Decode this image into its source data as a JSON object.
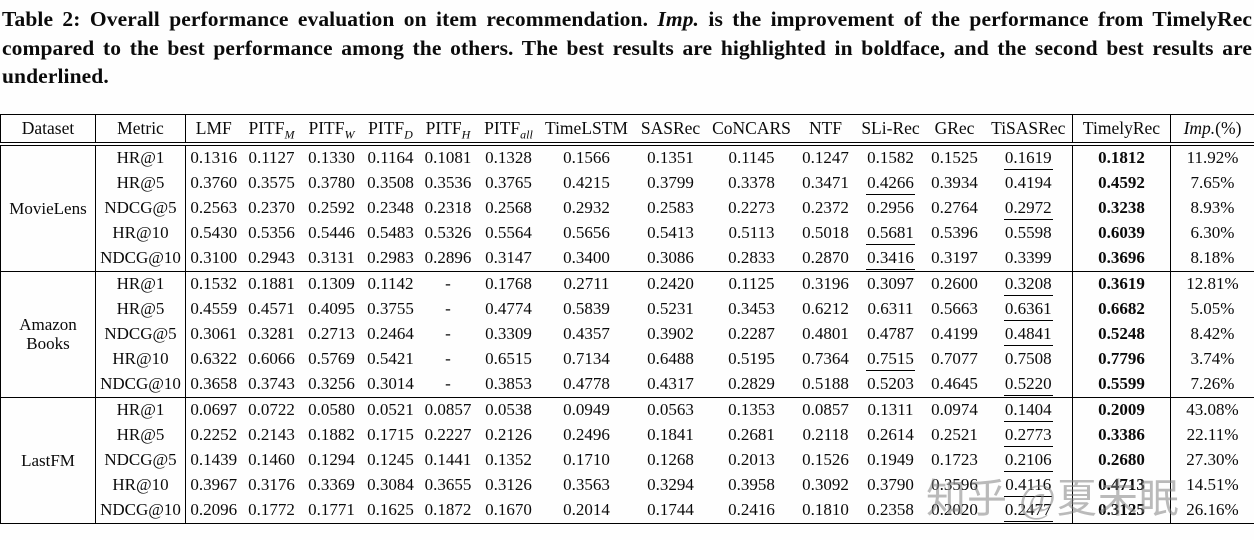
{
  "caption": {
    "part1": "Table 2: Overall performance evaluation on item recommendation. ",
    "term": "Imp.",
    "part2": " is the improvement of the performance from TimelyRec compared to the best performance among the others. The best results are highlighted in boldface, and the second best results are underlined."
  },
  "watermark": "知乎 @夏未眠",
  "table": {
    "columns": [
      {
        "label": "Dataset"
      },
      {
        "label": "Metric"
      },
      {
        "label": "LMF"
      },
      {
        "label": "PITF",
        "sub": "M"
      },
      {
        "label": "PITF",
        "sub": "W"
      },
      {
        "label": "PITF",
        "sub": "D"
      },
      {
        "label": "PITF",
        "sub": "H"
      },
      {
        "label": "PITF",
        "sub": "all"
      },
      {
        "label": "TimeLSTM"
      },
      {
        "label": "SASRec"
      },
      {
        "label": "CoNCARS"
      },
      {
        "label": "NTF"
      },
      {
        "label": "SLi-Rec"
      },
      {
        "label": "GRec"
      },
      {
        "label": "TiSASRec"
      },
      {
        "label": "TimelyRec"
      },
      {
        "label": "Imp.",
        "suffix": "(%)",
        "italic": true
      }
    ],
    "groups": [
      {
        "dataset": "MovieLens",
        "rows": [
          {
            "metric": "HR@1",
            "values": [
              "0.1316",
              "0.1127",
              "0.1330",
              "0.1164",
              "0.1081",
              "0.1328",
              "0.1566",
              "0.1351",
              "0.1145",
              "0.1247",
              "0.1582",
              "0.1525",
              "0.1619"
            ],
            "ul": 12,
            "timelyrec": "0.1812",
            "imp": "11.92%"
          },
          {
            "metric": "HR@5",
            "values": [
              "0.3760",
              "0.3575",
              "0.3780",
              "0.3508",
              "0.3536",
              "0.3765",
              "0.4215",
              "0.3799",
              "0.3378",
              "0.3471",
              "0.4266",
              "0.3934",
              "0.4194"
            ],
            "ul": 10,
            "timelyrec": "0.4592",
            "imp": "7.65%"
          },
          {
            "metric": "NDCG@5",
            "values": [
              "0.2563",
              "0.2370",
              "0.2592",
              "0.2348",
              "0.2318",
              "0.2568",
              "0.2932",
              "0.2583",
              "0.2273",
              "0.2372",
              "0.2956",
              "0.2764",
              "0.2972"
            ],
            "ul": 12,
            "timelyrec": "0.3238",
            "imp": "8.93%"
          },
          {
            "metric": "HR@10",
            "values": [
              "0.5430",
              "0.5356",
              "0.5446",
              "0.5483",
              "0.5326",
              "0.5564",
              "0.5656",
              "0.5413",
              "0.5113",
              "0.5018",
              "0.5681",
              "0.5396",
              "0.5598"
            ],
            "ul": 10,
            "timelyrec": "0.6039",
            "imp": "6.30%"
          },
          {
            "metric": "NDCG@10",
            "values": [
              "0.3100",
              "0.2943",
              "0.3131",
              "0.2983",
              "0.2896",
              "0.3147",
              "0.3400",
              "0.3086",
              "0.2833",
              "0.2870",
              "0.3416",
              "0.3197",
              "0.3399"
            ],
            "ul": 10,
            "timelyrec": "0.3696",
            "imp": "8.18%"
          }
        ]
      },
      {
        "dataset": "Amazon Books",
        "rows": [
          {
            "metric": "HR@1",
            "values": [
              "0.1532",
              "0.1881",
              "0.1309",
              "0.1142",
              "-",
              "0.1768",
              "0.2711",
              "0.2420",
              "0.1125",
              "0.3196",
              "0.3097",
              "0.2600",
              "0.3208"
            ],
            "ul": 12,
            "timelyrec": "0.3619",
            "imp": "12.81%"
          },
          {
            "metric": "HR@5",
            "values": [
              "0.4559",
              "0.4571",
              "0.4095",
              "0.3755",
              "-",
              "0.4774",
              "0.5839",
              "0.5231",
              "0.3453",
              "0.6212",
              "0.6311",
              "0.5663",
              "0.6361"
            ],
            "ul": 12,
            "timelyrec": "0.6682",
            "imp": "5.05%"
          },
          {
            "metric": "NDCG@5",
            "values": [
              "0.3061",
              "0.3281",
              "0.2713",
              "0.2464",
              "-",
              "0.3309",
              "0.4357",
              "0.3902",
              "0.2287",
              "0.4801",
              "0.4787",
              "0.4199",
              "0.4841"
            ],
            "ul": 12,
            "timelyrec": "0.5248",
            "imp": "8.42%"
          },
          {
            "metric": "HR@10",
            "values": [
              "0.6322",
              "0.6066",
              "0.5769",
              "0.5421",
              "-",
              "0.6515",
              "0.7134",
              "0.6488",
              "0.5195",
              "0.7364",
              "0.7515",
              "0.7077",
              "0.7508"
            ],
            "ul": 10,
            "timelyrec": "0.7796",
            "imp": "3.74%"
          },
          {
            "metric": "NDCG@10",
            "values": [
              "0.3658",
              "0.3743",
              "0.3256",
              "0.3014",
              "-",
              "0.3853",
              "0.4778",
              "0.4317",
              "0.2829",
              "0.5188",
              "0.5203",
              "0.4645",
              "0.5220"
            ],
            "ul": 12,
            "timelyrec": "0.5599",
            "imp": "7.26%"
          }
        ]
      },
      {
        "dataset": "LastFM",
        "rows": [
          {
            "metric": "HR@1",
            "values": [
              "0.0697",
              "0.0722",
              "0.0580",
              "0.0521",
              "0.0857",
              "0.0538",
              "0.0949",
              "0.0563",
              "0.1353",
              "0.0857",
              "0.1311",
              "0.0974",
              "0.1404"
            ],
            "ul": 12,
            "timelyrec": "0.2009",
            "imp": "43.08%"
          },
          {
            "metric": "HR@5",
            "values": [
              "0.2252",
              "0.2143",
              "0.1882",
              "0.1715",
              "0.2227",
              "0.2126",
              "0.2496",
              "0.1841",
              "0.2681",
              "0.2118",
              "0.2614",
              "0.2521",
              "0.2773"
            ],
            "ul": 12,
            "timelyrec": "0.3386",
            "imp": "22.11%"
          },
          {
            "metric": "NDCG@5",
            "values": [
              "0.1439",
              "0.1460",
              "0.1294",
              "0.1245",
              "0.1441",
              "0.1352",
              "0.1710",
              "0.1268",
              "0.2013",
              "0.1526",
              "0.1949",
              "0.1723",
              "0.2106"
            ],
            "ul": 12,
            "timelyrec": "0.2680",
            "imp": "27.30%"
          },
          {
            "metric": "HR@10",
            "values": [
              "0.3967",
              "0.3176",
              "0.3369",
              "0.3084",
              "0.3655",
              "0.3126",
              "0.3563",
              "0.3294",
              "0.3958",
              "0.3092",
              "0.3790",
              "0.3596",
              "0.4116"
            ],
            "ul": 12,
            "timelyrec": "0.4713",
            "imp": "14.51%"
          },
          {
            "metric": "NDCG@10",
            "values": [
              "0.2096",
              "0.1772",
              "0.1771",
              "0.1625",
              "0.1872",
              "0.1670",
              "0.2014",
              "0.1744",
              "0.2416",
              "0.1810",
              "0.2358",
              "0.2020",
              "0.2477"
            ],
            "ul": 12,
            "timelyrec": "0.3125",
            "imp": "26.16%"
          }
        ]
      }
    ]
  }
}
